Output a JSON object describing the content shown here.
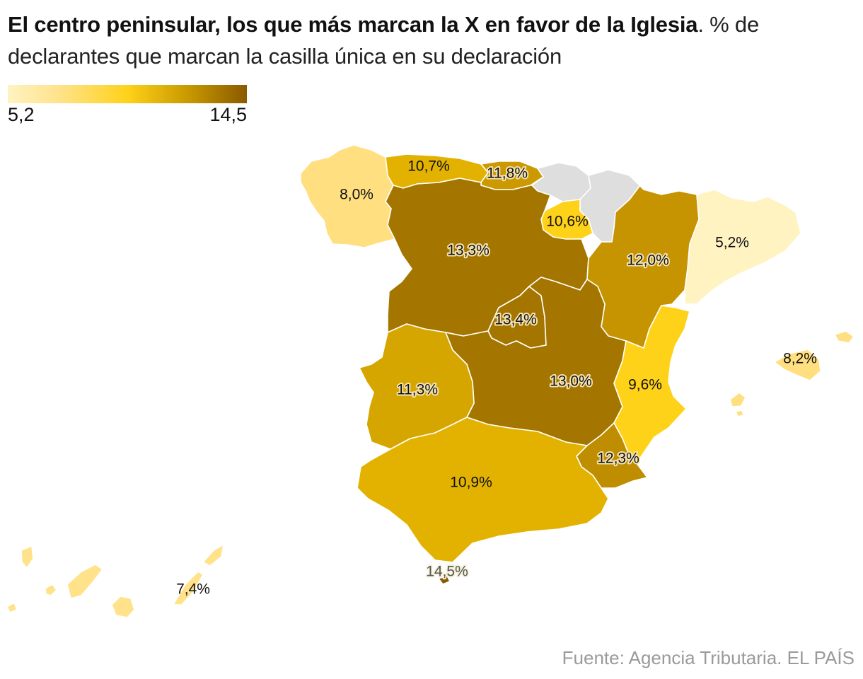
{
  "title": {
    "bold": "El centro peninsular, los que más marcan la X en favor de la Iglesia",
    "rest": ". % de declarantes que marcan la casilla única en su declaración"
  },
  "legend": {
    "min": "5,2",
    "max": "14,5"
  },
  "chart_data": {
    "type": "choropleth",
    "scale_min": 5.2,
    "scale_max": 14.5,
    "no_data_color": "#dedede",
    "values": [
      {
        "id": "galicia",
        "value": 8.0,
        "label": "8,0%",
        "color": "#ffdf80"
      },
      {
        "id": "asturias",
        "value": 10.7,
        "label": "10,7%",
        "color": "#e3b200"
      },
      {
        "id": "cantabria",
        "value": 11.8,
        "label": "11,8%",
        "color": "#cc9a00"
      },
      {
        "id": "pais-vasco",
        "value": null,
        "label": "",
        "color": "#dedede"
      },
      {
        "id": "navarra",
        "value": null,
        "label": "",
        "color": "#dedede"
      },
      {
        "id": "la-rioja",
        "value": 10.6,
        "label": "10,6%",
        "color": "#ffd21a"
      },
      {
        "id": "castilla-y-leon",
        "value": 13.3,
        "label": "13,3%",
        "color": "#a47600"
      },
      {
        "id": "aragon",
        "value": 12.0,
        "label": "12,0%",
        "color": "#c59400"
      },
      {
        "id": "cataluna",
        "value": 5.2,
        "label": "5,2%",
        "color": "#fff3c2"
      },
      {
        "id": "madrid",
        "value": 13.4,
        "label": "13,4%",
        "color": "#a47600"
      },
      {
        "id": "castilla-la-mancha",
        "value": 13.0,
        "label": "13,0%",
        "color": "#a47600"
      },
      {
        "id": "extremadura",
        "value": 11.3,
        "label": "11,3%",
        "color": "#d6a600"
      },
      {
        "id": "comunidad-valenciana",
        "value": 9.6,
        "label": "9,6%",
        "color": "#ffd21a"
      },
      {
        "id": "region-de-murcia",
        "value": 12.3,
        "label": "12,3%",
        "color": "#bf8d00"
      },
      {
        "id": "andalucia",
        "value": 10.9,
        "label": "10,9%",
        "color": "#e3b200"
      },
      {
        "id": "ceuta",
        "value": 14.5,
        "label": "14,5%",
        "color": "#8a5a00"
      },
      {
        "id": "islas-baleares",
        "value": 8.2,
        "label": "8,2%",
        "color": "#ffdf80"
      },
      {
        "id": "canarias",
        "value": 7.4,
        "label": "7,4%",
        "color": "#ffe28a"
      }
    ]
  },
  "source": "Fuente: Agencia Tributaria. EL PAÍS"
}
